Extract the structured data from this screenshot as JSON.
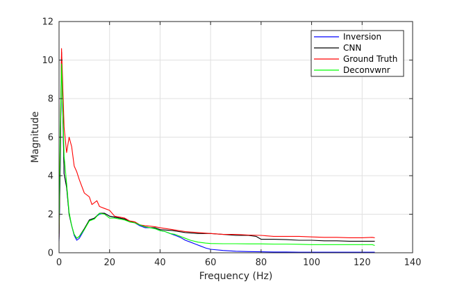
{
  "chart_data": {
    "type": "line",
    "xlabel": "Frequency (Hz)",
    "ylabel": "Magnitude",
    "xlim": [
      0,
      140
    ],
    "ylim": [
      0,
      12
    ],
    "xticks": [
      0,
      20,
      40,
      60,
      80,
      100,
      120,
      140
    ],
    "yticks": [
      0,
      2,
      4,
      6,
      8,
      10,
      12
    ],
    "grid": true,
    "legend_position": "top-right",
    "series": [
      {
        "name": "Inversion",
        "color": "#0000ff",
        "x": [
          0,
          0.5,
          1,
          2,
          3,
          4,
          5,
          6,
          7,
          8,
          10,
          12,
          14,
          16,
          18,
          20,
          22,
          24,
          26,
          28,
          30,
          32,
          34,
          36,
          38,
          40,
          42,
          44,
          46,
          48,
          50,
          52,
          54,
          56,
          58,
          60,
          65,
          70,
          75,
          80,
          85,
          90,
          95,
          100,
          105,
          110,
          115,
          120,
          125
        ],
        "y": [
          0.6,
          4.5,
          10.4,
          4.1,
          3.4,
          2.0,
          1.4,
          0.9,
          0.65,
          0.75,
          1.2,
          1.7,
          1.8,
          2.0,
          2.05,
          1.9,
          1.85,
          1.8,
          1.75,
          1.6,
          1.55,
          1.4,
          1.3,
          1.3,
          1.25,
          1.15,
          1.1,
          1.0,
          0.9,
          0.8,
          0.65,
          0.55,
          0.45,
          0.35,
          0.25,
          0.18,
          0.12,
          0.08,
          0.06,
          0.05,
          0.04,
          0.04,
          0.03,
          0.03,
          0.03,
          0.03,
          0.03,
          0.03,
          0.03
        ]
      },
      {
        "name": "CNN",
        "color": "#000000",
        "x": [
          0,
          0.5,
          1,
          2,
          3,
          4,
          5,
          6,
          7,
          8,
          10,
          12,
          14,
          16,
          18,
          20,
          22,
          24,
          26,
          28,
          30,
          32,
          34,
          36,
          38,
          40,
          45,
          50,
          55,
          60,
          65,
          70,
          75,
          78,
          80,
          85,
          90,
          95,
          100,
          105,
          110,
          115,
          120,
          125
        ],
        "y": [
          0.7,
          5.0,
          10.4,
          4.1,
          3.4,
          2.0,
          1.4,
          0.95,
          0.75,
          0.85,
          1.25,
          1.7,
          1.8,
          2.05,
          2.05,
          1.9,
          1.85,
          1.8,
          1.75,
          1.6,
          1.6,
          1.45,
          1.35,
          1.3,
          1.3,
          1.2,
          1.15,
          1.05,
          1.0,
          1.0,
          0.95,
          0.9,
          0.9,
          0.85,
          0.7,
          0.7,
          0.68,
          0.65,
          0.65,
          0.62,
          0.62,
          0.6,
          0.6,
          0.6
        ]
      },
      {
        "name": "Ground Truth",
        "color": "#ff0000",
        "x": [
          0,
          0.5,
          1,
          2,
          3,
          4,
          5,
          6,
          7,
          8,
          10,
          12,
          13,
          14,
          15,
          16,
          18,
          20,
          22,
          24,
          26,
          28,
          30,
          32,
          34,
          36,
          38,
          40,
          45,
          50,
          55,
          60,
          65,
          70,
          75,
          80,
          85,
          90,
          95,
          100,
          105,
          110,
          115,
          120,
          124,
          125
        ],
        "y": [
          0.8,
          6.0,
          10.6,
          6.5,
          5.2,
          6.0,
          5.5,
          4.5,
          4.2,
          3.8,
          3.1,
          2.9,
          2.5,
          2.6,
          2.7,
          2.4,
          2.3,
          2.2,
          1.9,
          1.85,
          1.8,
          1.65,
          1.6,
          1.45,
          1.4,
          1.38,
          1.35,
          1.3,
          1.2,
          1.1,
          1.05,
          1.0,
          0.95,
          0.95,
          0.92,
          0.9,
          0.85,
          0.85,
          0.85,
          0.82,
          0.8,
          0.8,
          0.78,
          0.78,
          0.8,
          0.78
        ]
      },
      {
        "name": "Deconvwnr",
        "color": "#00ff00",
        "x": [
          0,
          0.5,
          1,
          2,
          3,
          4,
          5,
          6,
          7,
          8,
          10,
          12,
          14,
          16,
          18,
          20,
          22,
          24,
          26,
          28,
          30,
          32,
          34,
          36,
          38,
          40,
          42,
          44,
          46,
          48,
          50,
          52,
          55,
          58,
          60,
          65,
          70,
          75,
          80,
          85,
          90,
          95,
          100,
          105,
          110,
          115,
          120,
          124,
          125
        ],
        "y": [
          1.0,
          6.5,
          9.8,
          5.0,
          3.6,
          2.1,
          1.4,
          0.95,
          0.75,
          0.85,
          1.2,
          1.65,
          1.75,
          2.05,
          2.0,
          1.8,
          1.8,
          1.75,
          1.7,
          1.6,
          1.55,
          1.45,
          1.35,
          1.3,
          1.25,
          1.15,
          1.1,
          1.0,
          0.95,
          0.85,
          0.75,
          0.65,
          0.55,
          0.5,
          0.48,
          0.47,
          0.47,
          0.46,
          0.46,
          0.45,
          0.45,
          0.44,
          0.42,
          0.42,
          0.42,
          0.42,
          0.42,
          0.42,
          0.38
        ]
      }
    ]
  }
}
